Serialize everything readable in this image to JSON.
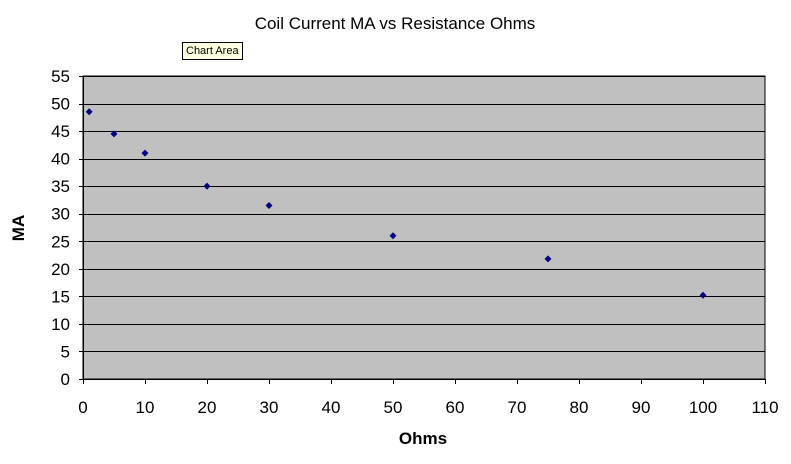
{
  "tooltip": "Chart Area",
  "colors": {
    "plot_background": "#c0c0c0",
    "marker": "#000080",
    "gridline": "#000000",
    "axis": "#000000"
  },
  "chart_data": {
    "type": "scatter",
    "title": "Coil Current MA vs  Resistance Ohms",
    "xlabel": "Ohms",
    "ylabel": "MA",
    "xlim": [
      0,
      110
    ],
    "ylim": [
      0,
      55
    ],
    "x_ticks": [
      "0",
      "10",
      "20",
      "30",
      "40",
      "50",
      "60",
      "70",
      "80",
      "90",
      "100",
      "110"
    ],
    "y_ticks": [
      "0",
      "5",
      "10",
      "15",
      "20",
      "25",
      "30",
      "35",
      "40",
      "45",
      "50",
      "55"
    ],
    "grid": "horizontal",
    "legend": "none",
    "marker": "diamond",
    "series": [
      {
        "points": [
          {
            "x": 1,
            "y": 48.5
          },
          {
            "x": 5,
            "y": 44.5
          },
          {
            "x": 10,
            "y": 41
          },
          {
            "x": 20,
            "y": 35
          },
          {
            "x": 30,
            "y": 31.5
          },
          {
            "x": 50,
            "y": 26
          },
          {
            "x": 75,
            "y": 21.8
          },
          {
            "x": 100,
            "y": 15.2
          }
        ]
      }
    ]
  }
}
